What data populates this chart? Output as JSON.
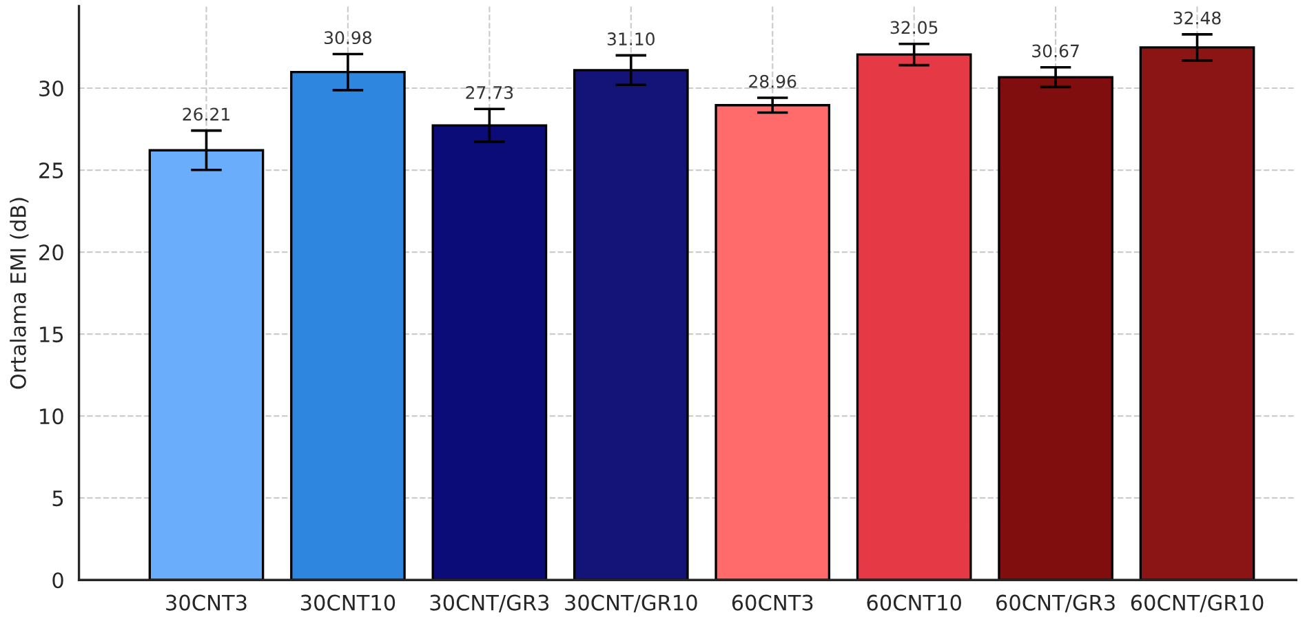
{
  "chart_data": {
    "type": "bar",
    "ylabel": "Ortalama EMI (dB)",
    "categories": [
      "30CNT3",
      "30CNT10",
      "30CNT/GR3",
      "30CNT/GR10",
      "60CNT3",
      "60CNT10",
      "60CNT/GR3",
      "60CNT/GR10"
    ],
    "values": [
      26.21,
      30.98,
      27.73,
      31.1,
      28.96,
      32.05,
      30.67,
      32.48
    ],
    "errors": [
      1.2,
      1.1,
      1.0,
      0.9,
      0.45,
      0.65,
      0.6,
      0.8
    ],
    "colors": [
      "#6aaefb",
      "#2e86de",
      "#0c0c78",
      "#131378",
      "#ff6b6b",
      "#e63946",
      "#800e0e",
      "#8b1414"
    ],
    "ylim": [
      0,
      35
    ],
    "yticks": [
      0,
      5,
      10,
      15,
      20,
      25,
      30
    ],
    "value_labels": [
      "26.21",
      "30.98",
      "27.73",
      "31.10",
      "28.96",
      "32.05",
      "30.67",
      "32.48"
    ],
    "grid": true
  }
}
